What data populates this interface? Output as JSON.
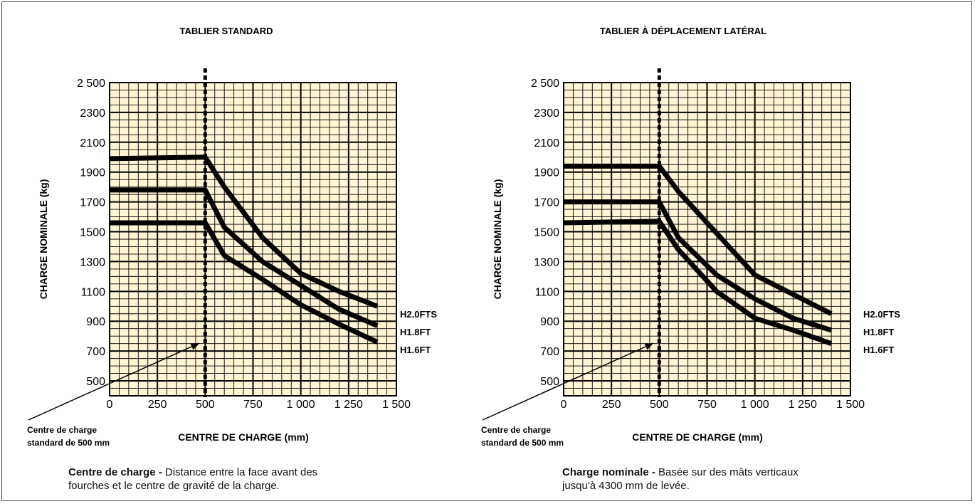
{
  "chart_data": [
    {
      "type": "line",
      "title": "TABLIER  STANDARD",
      "xlabel": "CENTRE DE CHARGE (mm)",
      "ylabel": "CHARGE NOMINALE (kg)",
      "x_ticks": [
        "0",
        "250",
        "500",
        "750",
        "1 000",
        "1 250",
        "1 500"
      ],
      "y_ticks": [
        "500",
        "700",
        "900",
        "1100",
        "1300",
        "1500",
        "1700",
        "1900",
        "2100",
        "2300",
        "2 500"
      ],
      "xlim": [
        0,
        1500
      ],
      "ylim": [
        400,
        2500
      ],
      "grid": true,
      "grid_color": "#fff4d4",
      "reference_line": {
        "x": 500,
        "label_line1": "Centre de charge",
        "label_line2": "standard de 500 mm"
      },
      "series": [
        {
          "name": "H2.0FTS",
          "x": [
            0,
            500,
            600,
            800,
            1000,
            1200,
            1400
          ],
          "y": [
            1990,
            2000,
            1800,
            1460,
            1220,
            1100,
            1000
          ]
        },
        {
          "name": "H1.8FT",
          "x": [
            0,
            500,
            600,
            800,
            1000,
            1200,
            1400
          ],
          "y": [
            1780,
            1780,
            1530,
            1300,
            1140,
            980,
            870
          ]
        },
        {
          "name": "H1.6FT",
          "x": [
            0,
            500,
            600,
            800,
            1000,
            1200,
            1400
          ],
          "y": [
            1560,
            1560,
            1340,
            1180,
            1010,
            880,
            760
          ]
        }
      ]
    },
    {
      "type": "line",
      "title": "TABLIER À DÉPLACEMENT LATÉRAL",
      "xlabel": "CENTRE DE CHARGE (mm)",
      "ylabel": "CHARGE NOMINALE (kg)",
      "x_ticks": [
        "0",
        "250",
        "500",
        "750",
        "1 000",
        "1 250",
        "1 500"
      ],
      "y_ticks": [
        "500",
        "700",
        "900",
        "1100",
        "1300",
        "1500",
        "1700",
        "1900",
        "2100",
        "2300",
        "2 500"
      ],
      "xlim": [
        0,
        1500
      ],
      "ylim": [
        400,
        2500
      ],
      "grid": true,
      "grid_color": "#fff4d4",
      "reference_line": {
        "x": 500,
        "label_line1": "Centre de charge",
        "label_line2": "standard de 500 mm"
      },
      "series": [
        {
          "name": "H2.0FTS",
          "x": [
            0,
            500,
            600,
            750,
            1000,
            1200,
            1400
          ],
          "y": [
            1940,
            1940,
            1770,
            1560,
            1210,
            1080,
            950
          ]
        },
        {
          "name": "H1.8FT",
          "x": [
            0,
            500,
            600,
            800,
            1000,
            1200,
            1400
          ],
          "y": [
            1700,
            1700,
            1460,
            1210,
            1050,
            920,
            840
          ]
        },
        {
          "name": "H1.6FT",
          "x": [
            0,
            500,
            600,
            800,
            1000,
            1200,
            1400
          ],
          "y": [
            1560,
            1570,
            1380,
            1100,
            920,
            840,
            750
          ]
        }
      ]
    }
  ],
  "notes": {
    "left_bold": "Centre de charge - ",
    "left_line1": "Distance entre la face avant des",
    "left_line2": "fourches et le centre de gravité de la charge.",
    "right_bold": "Charge nominale - ",
    "right_line1": "Basée sur des mâts verticaux",
    "right_line2": "jusqu'à 4300 mm de levée."
  },
  "colors": {
    "grid_fill": "#fff4d4",
    "ink": "#000000"
  }
}
